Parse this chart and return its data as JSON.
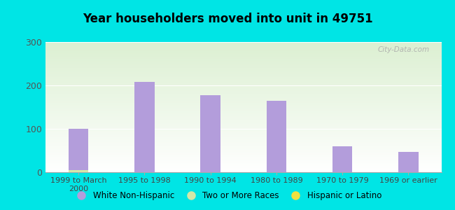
{
  "title": "Year householders moved into unit in 49751",
  "categories": [
    "1999 to March\n2000",
    "1995 to 1998",
    "1990 to 1994",
    "1980 to 1989",
    "1970 to 1979",
    "1969 or earlier"
  ],
  "white_non_hispanic": [
    100,
    208,
    178,
    165,
    60,
    47
  ],
  "two_or_more_races": [
    5,
    0,
    0,
    0,
    0,
    0
  ],
  "hispanic_or_latino": [
    0,
    0,
    0,
    0,
    0,
    0
  ],
  "bar_color_purple": "#b39ddb",
  "bar_color_green": "#d4e8a8",
  "bar_color_yellow": "#f0e040",
  "background_outer": "#00e5e5",
  "ylim": [
    0,
    300
  ],
  "yticks": [
    0,
    100,
    200,
    300
  ],
  "watermark": "City-Data.com",
  "legend_labels": [
    "White Non-Hispanic",
    "Two or More Races",
    "Hispanic or Latino"
  ],
  "bar_width": 0.3
}
